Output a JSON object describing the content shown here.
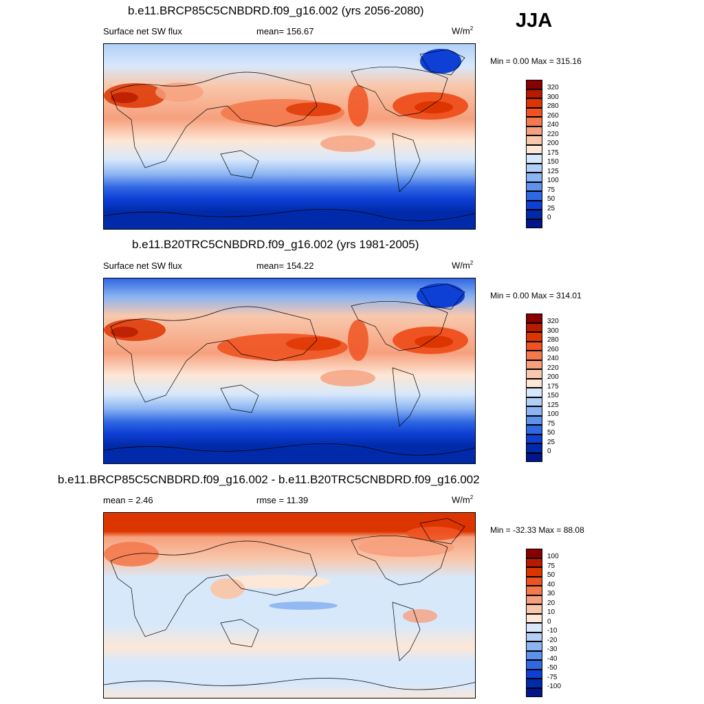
{
  "season": "JJA",
  "units": "W/m",
  "units_sup": "2",
  "panels": [
    {
      "title": "b.e11.BRCP85C5CNBDRD.f09_g16.002 (yrs 2056-2080)",
      "left_label": "Surface net SW flux",
      "center_label": "mean= 156.67",
      "minmax": "Min =   0.00 Max = 315.16"
    },
    {
      "title": "b.e11.B20TRC5CNBDRD.f09_g16.002 (yrs 1981-2005)",
      "left_label": "Surface net SW flux",
      "center_label": "mean= 154.22",
      "minmax": "Min =   0.00 Max = 314.01"
    },
    {
      "title": "b.e11.BRCP85C5CNBDRD.f09_g16.002 - b.e11.B20TRC5CNBDRD.f09_g16.002",
      "left_label": "mean =   2.46",
      "center_label": "rmse =  11.39",
      "minmax": "Min = -32.33 Max =  88.08"
    }
  ],
  "chart_data": [
    {
      "type": "heatmap",
      "title": "b.e11.BRCP85C5CNBDRD.f09_g16.002 (yrs 2056-2080)",
      "variable": "Surface net SW flux",
      "mean": 156.67,
      "min": 0.0,
      "max": 315.16,
      "colorbar_levels": [
        "320",
        "300",
        "280",
        "260",
        "240",
        "220",
        "200",
        "175",
        "150",
        "125",
        "100",
        "75",
        "50",
        "25",
        "0"
      ]
    },
    {
      "type": "heatmap",
      "title": "b.e11.B20TRC5CNBDRD.f09_g16.002 (yrs 1981-2005)",
      "variable": "Surface net SW flux",
      "mean": 154.22,
      "min": 0.0,
      "max": 314.01,
      "colorbar_levels": [
        "320",
        "300",
        "280",
        "260",
        "240",
        "220",
        "200",
        "175",
        "150",
        "125",
        "100",
        "75",
        "50",
        "25",
        "0"
      ]
    },
    {
      "type": "heatmap",
      "title": "b.e11.BRCP85C5CNBDRD.f09_g16.002 - b.e11.B20TRC5CNBDRD.f09_g16.002",
      "mean": 2.46,
      "rmse": 11.39,
      "min": -32.33,
      "max": 88.08,
      "colorbar_levels": [
        "100",
        "75",
        "50",
        "40",
        "30",
        "20",
        "10",
        "0",
        "-10",
        "-20",
        "-30",
        "-40",
        "-50",
        "-75",
        "-100"
      ]
    }
  ],
  "colorbar_colors": [
    "#8a0000",
    "#b71a00",
    "#dd3500",
    "#f05322",
    "#f47a4e",
    "#f6a07d",
    "#f8c8ad",
    "#fde7d6",
    "#d8e8fb",
    "#b2d0f7",
    "#8bb4f2",
    "#5d91eb",
    "#3067e3",
    "#0f40d6",
    "#002aa9",
    "#00168a"
  ]
}
